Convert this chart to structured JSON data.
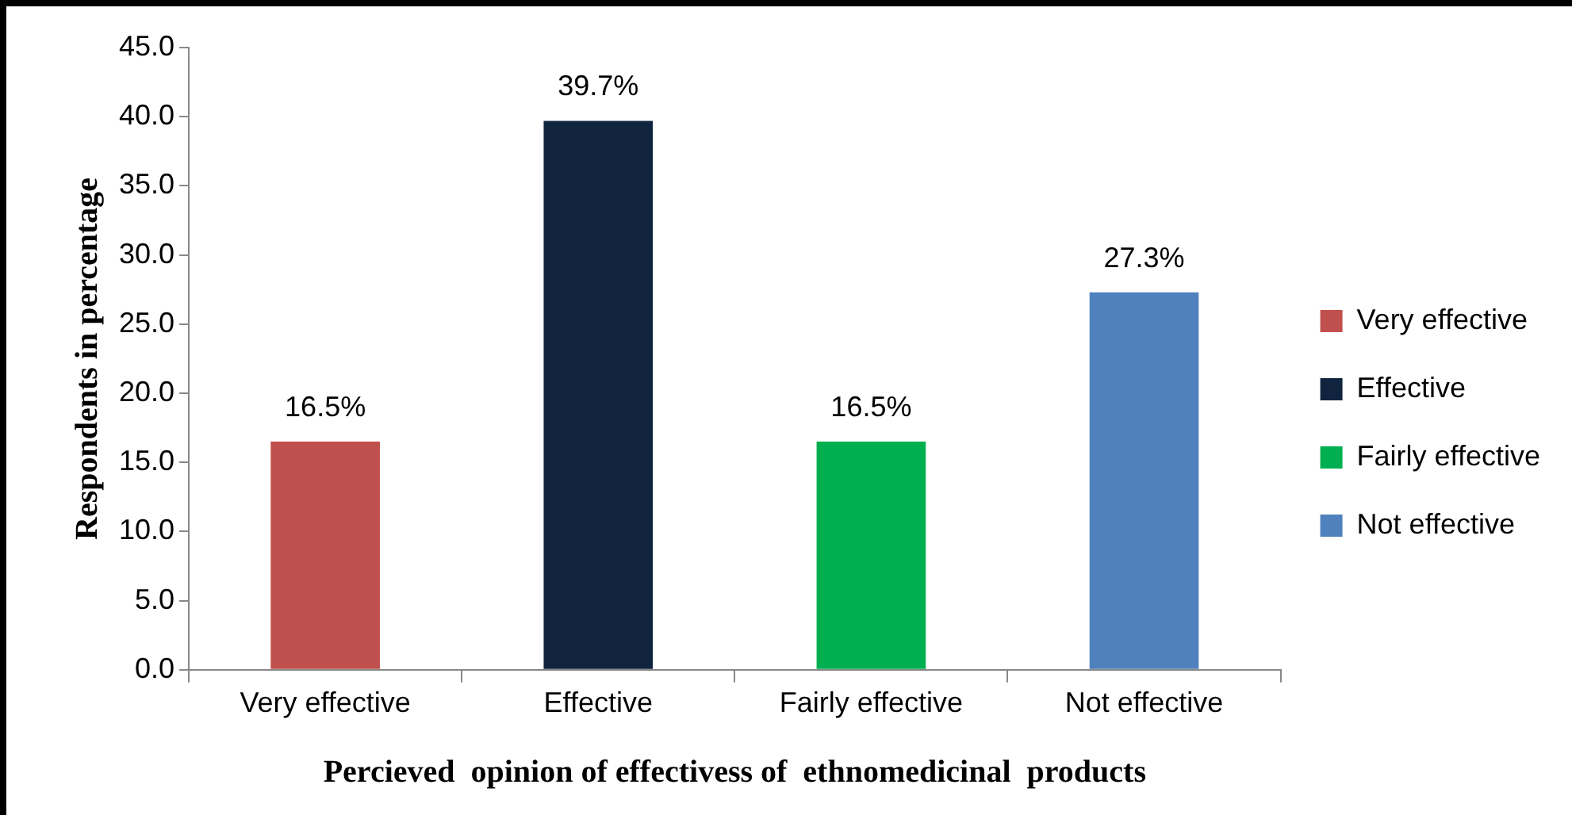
{
  "chart_data": {
    "type": "bar",
    "xlabel": "Percieved  opinion of effectivess of  ethnomedicinal  products",
    "ylabel": "Respondents in percentage",
    "categories": [
      "Very effective",
      "Effective",
      "Fairly effective",
      "Not effective"
    ],
    "series": [
      {
        "name": "Very effective",
        "color": "#c0504d",
        "values": [
          16.5,
          null,
          null,
          null
        ],
        "value_labels": [
          "16.5%",
          null,
          null,
          null
        ]
      },
      {
        "name": "Effective",
        "color": "#10243f",
        "values": [
          null,
          39.7,
          null,
          null
        ],
        "value_labels": [
          null,
          "39.7%",
          null,
          null
        ]
      },
      {
        "name": "Fairly effective",
        "color": "#00b050",
        "values": [
          null,
          null,
          16.5,
          null
        ],
        "value_labels": [
          null,
          null,
          "16.5%",
          null
        ]
      },
      {
        "name": "Not effective",
        "color": "#4f81bd",
        "values": [
          null,
          null,
          null,
          27.3
        ],
        "value_labels": [
          null,
          null,
          null,
          "27.3%"
        ]
      }
    ],
    "ylim": [
      0,
      45
    ],
    "yticks": [
      {
        "value": 0,
        "label": "0.0"
      },
      {
        "value": 5,
        "label": "5.0"
      },
      {
        "value": 10,
        "label": "10.0"
      },
      {
        "value": 15,
        "label": "15.0"
      },
      {
        "value": 20,
        "label": "20.0"
      },
      {
        "value": 25,
        "label": "25.0"
      },
      {
        "value": 30,
        "label": "30.0"
      },
      {
        "value": 35,
        "label": "35.0"
      },
      {
        "value": 40,
        "label": "40.0"
      },
      {
        "value": 45,
        "label": "45.0"
      }
    ],
    "grid": false,
    "legend": "right"
  }
}
